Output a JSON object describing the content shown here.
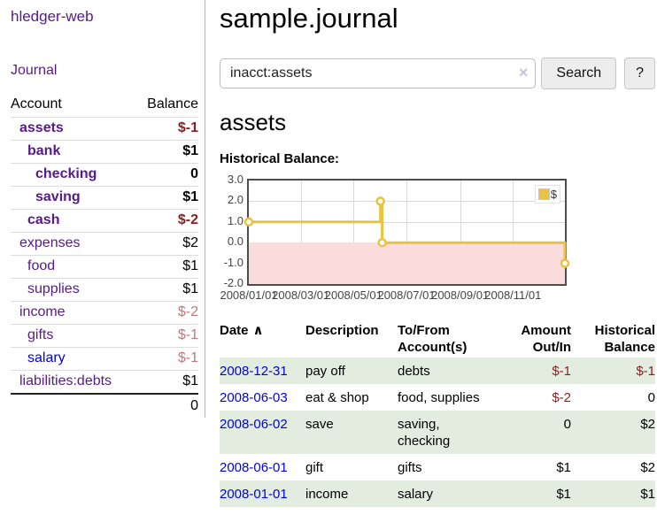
{
  "sidebar": {
    "app_title": "hledger-web",
    "journal_link": "Journal",
    "accounts": {
      "header": {
        "account": "Account",
        "balance": "Balance"
      },
      "rows": [
        {
          "name": "assets",
          "balance": "$-1",
          "indent": 0,
          "bold": true,
          "balance_style": "neg-dark"
        },
        {
          "name": "bank",
          "balance": "$1",
          "indent": 1,
          "bold": true,
          "balance_style": "pos"
        },
        {
          "name": "checking",
          "balance": "0",
          "indent": 2,
          "bold": true,
          "balance_style": "pos"
        },
        {
          "name": "saving",
          "balance": "$1",
          "indent": 2,
          "bold": true,
          "balance_style": "pos"
        },
        {
          "name": "cash",
          "balance": "$-2",
          "indent": 1,
          "bold": true,
          "balance_style": "neg-dark"
        },
        {
          "name": "expenses",
          "balance": "$2",
          "indent": 0,
          "bold": false,
          "balance_style": "pos"
        },
        {
          "name": "food",
          "balance": "$1",
          "indent": 1,
          "bold": false,
          "balance_style": "pos"
        },
        {
          "name": "supplies",
          "balance": "$1",
          "indent": 1,
          "bold": false,
          "balance_style": "pos"
        },
        {
          "name": "income",
          "balance": "$-2",
          "indent": 0,
          "bold": false,
          "balance_style": "neg-light"
        },
        {
          "name": "gifts",
          "balance": "$-1",
          "indent": 1,
          "bold": false,
          "balance_style": "neg-light"
        },
        {
          "name": "salary",
          "balance": "$-1",
          "indent": 1,
          "bold": false,
          "balance_style": "neg-light",
          "link_color": "blue"
        },
        {
          "name": "liabilities:debts",
          "balance": "$1",
          "indent": 0,
          "bold": false,
          "balance_style": "pos"
        }
      ],
      "total": "0"
    }
  },
  "main": {
    "title": "sample.journal",
    "search": {
      "value": "inacct:assets",
      "clear_icon": "×",
      "button_label": "Search",
      "help_label": "?"
    },
    "account_heading": "assets",
    "chart_title": "Historical Balance:",
    "transactions": {
      "headers": {
        "date": "Date",
        "sort_indicator": "∧",
        "description": "Description",
        "tofrom_line1": "To/From",
        "tofrom_line2": "Account(s)",
        "amount_line1": "Amount",
        "amount_line2": "Out/In",
        "balance_line1": "Historical",
        "balance_line2": "Balance"
      },
      "rows": [
        {
          "date": "2008-12-31",
          "description": "pay off",
          "accounts": [
            "debts"
          ],
          "amount": "$-1",
          "amount_negative": true,
          "balance": "$-1",
          "balance_negative": true,
          "shaded": true
        },
        {
          "date": "2008-06-03",
          "description": "eat & shop",
          "accounts": [
            "food, supplies"
          ],
          "amount": "$-2",
          "amount_negative": true,
          "balance": "0",
          "balance_negative": false,
          "shaded": false
        },
        {
          "date": "2008-06-02",
          "description": "save",
          "accounts": [
            "saving,",
            "checking"
          ],
          "amount": "0",
          "amount_negative": false,
          "balance": "$2",
          "balance_negative": false,
          "shaded": true
        },
        {
          "date": "2008-06-01",
          "description": "gift",
          "accounts": [
            "gifts"
          ],
          "amount": "$1",
          "amount_negative": false,
          "balance": "$2",
          "balance_negative": false,
          "shaded": false
        },
        {
          "date": "2008-01-01",
          "description": "income",
          "accounts": [
            "salary"
          ],
          "amount": "$1",
          "amount_negative": false,
          "balance": "$1",
          "balance_negative": false,
          "shaded": true
        }
      ]
    }
  },
  "chart_data": {
    "type": "line",
    "title": "Historical Balance:",
    "step": true,
    "series": [
      {
        "name": "$",
        "color": "#e8c240",
        "points": [
          [
            "2008-01-01",
            1
          ],
          [
            "2008-06-01",
            2
          ],
          [
            "2008-06-03",
            0
          ],
          [
            "2008-12-31",
            -1
          ]
        ]
      }
    ],
    "x_range": [
      "2008-01-01",
      "2008-12-31"
    ],
    "ylim": [
      -2,
      3
    ],
    "yticks": [
      "3.0",
      "2.0",
      "1.0",
      "0.0",
      "-1.0",
      "-2.0"
    ],
    "xticks": [
      "2008/01/01",
      "2008/03/01",
      "2008/05/01",
      "2008/07/01",
      "2008/09/01",
      "2008/11/01"
    ],
    "legend": {
      "position": "top-right",
      "label": "$"
    },
    "negative_region_fill": "#fbdcdc",
    "zero_line_color": "#8b0000",
    "grid": true
  }
}
